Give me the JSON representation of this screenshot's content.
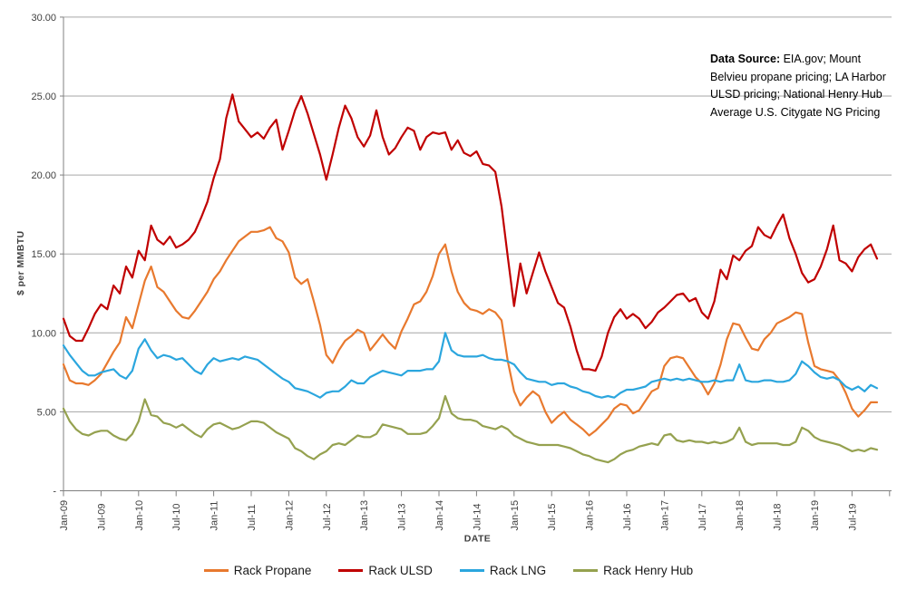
{
  "chart_data": {
    "type": "line",
    "title": "",
    "xlabel": "DATE",
    "ylabel": "$ per MMBTU",
    "ylim": [
      0,
      30
    ],
    "y_tick_step": 5,
    "y_tick_labels": [
      "30.00",
      "25.00",
      "20.00",
      "15.00",
      "10.00",
      "5.00",
      "-"
    ],
    "grid": "horizontal",
    "legend_position": "bottom",
    "x_start_label": "Jan-09",
    "x_end_label": "Nov-19",
    "x_tick_every_months": 6,
    "x_tick_labels": [
      "Jan-09",
      "Jul-09",
      "Jan-10",
      "Jul-10",
      "Jan-11",
      "Jul-11",
      "Jan-12",
      "Jul-12",
      "Jan-13",
      "Jul-13",
      "Jan-14",
      "Jul-14",
      "Jan-15",
      "Jul-15",
      "Jan-16",
      "Jul-16",
      "Jan-17",
      "Jul-17",
      "Jan-18",
      "Jul-18",
      "Jan-19",
      "Jul-19"
    ],
    "series": [
      {
        "name": "Rack Propane",
        "color": "#E8792E",
        "values": [
          8.0,
          7.0,
          6.8,
          6.8,
          6.7,
          7.0,
          7.4,
          8.1,
          8.8,
          9.4,
          11.0,
          10.3,
          11.8,
          13.3,
          14.2,
          12.9,
          12.6,
          12.0,
          11.4,
          11.0,
          10.9,
          11.4,
          12.0,
          12.6,
          13.4,
          13.9,
          14.6,
          15.2,
          15.8,
          16.1,
          16.4,
          16.4,
          16.5,
          16.7,
          16.0,
          15.8,
          15.1,
          13.5,
          13.1,
          13.4,
          12.0,
          10.5,
          8.6,
          8.1,
          8.9,
          9.5,
          9.8,
          10.2,
          10.0,
          8.9,
          9.4,
          9.9,
          9.4,
          9.0,
          10.1,
          10.9,
          11.8,
          12.0,
          12.6,
          13.6,
          15.0,
          15.6,
          13.9,
          12.6,
          11.9,
          11.5,
          11.4,
          11.2,
          11.5,
          11.3,
          10.8,
          8.2,
          6.3,
          5.4,
          5.9,
          6.3,
          6.0,
          5.0,
          4.3,
          4.7,
          5.0,
          4.5,
          4.2,
          3.9,
          3.5,
          3.8,
          4.2,
          4.6,
          5.2,
          5.5,
          5.4,
          4.9,
          5.1,
          5.7,
          6.3,
          6.5,
          7.9,
          8.4,
          8.5,
          8.4,
          7.8,
          7.2,
          6.8,
          6.1,
          6.8,
          8.0,
          9.6,
          10.6,
          10.5,
          9.7,
          9.0,
          8.9,
          9.6,
          10.0,
          10.6,
          10.8,
          11.0,
          11.3,
          11.2,
          9.4,
          7.9,
          7.7,
          7.6,
          7.5,
          7.0,
          6.2,
          5.2,
          4.7,
          5.1,
          5.6,
          5.6
        ]
      },
      {
        "name": "Rack ULSD",
        "color": "#C00000",
        "values": [
          10.9,
          9.8,
          9.5,
          9.5,
          10.3,
          11.2,
          11.8,
          11.5,
          13.0,
          12.5,
          14.2,
          13.5,
          15.2,
          14.6,
          16.8,
          15.9,
          15.6,
          16.1,
          15.4,
          15.6,
          15.9,
          16.4,
          17.3,
          18.3,
          19.8,
          21.0,
          23.6,
          25.1,
          23.4,
          22.9,
          22.4,
          22.7,
          22.3,
          23.0,
          23.5,
          21.6,
          22.8,
          24.1,
          25.0,
          23.9,
          22.6,
          21.3,
          19.7,
          21.3,
          23.0,
          24.4,
          23.6,
          22.4,
          21.8,
          22.5,
          24.1,
          22.4,
          21.3,
          21.7,
          22.4,
          23.0,
          22.8,
          21.6,
          22.4,
          22.7,
          22.6,
          22.7,
          21.6,
          22.2,
          21.4,
          21.2,
          21.5,
          20.7,
          20.6,
          20.2,
          18.0,
          14.8,
          11.7,
          14.4,
          12.5,
          13.8,
          15.1,
          13.9,
          12.9,
          11.9,
          11.6,
          10.4,
          8.9,
          7.7,
          7.7,
          7.6,
          8.5,
          10.0,
          11.0,
          11.5,
          10.9,
          11.2,
          10.9,
          10.3,
          10.7,
          11.3,
          11.6,
          12.0,
          12.4,
          12.5,
          12.0,
          12.2,
          11.3,
          10.9,
          12.0,
          14.0,
          13.4,
          14.9,
          14.6,
          15.2,
          15.5,
          16.7,
          16.2,
          16.0,
          16.8,
          17.5,
          16.0,
          15.0,
          13.8,
          13.2,
          13.4,
          14.2,
          15.3,
          16.8,
          14.6,
          14.4,
          13.9,
          14.8,
          15.3,
          15.6,
          14.7
        ]
      },
      {
        "name": "Rack LNG",
        "color": "#2BA6DE",
        "values": [
          9.2,
          8.6,
          8.1,
          7.6,
          7.3,
          7.3,
          7.5,
          7.6,
          7.7,
          7.3,
          7.1,
          7.6,
          9.0,
          9.6,
          8.9,
          8.4,
          8.6,
          8.5,
          8.3,
          8.4,
          8.0,
          7.6,
          7.4,
          8.0,
          8.4,
          8.2,
          8.3,
          8.4,
          8.3,
          8.5,
          8.4,
          8.3,
          8.0,
          7.7,
          7.4,
          7.1,
          6.9,
          6.5,
          6.4,
          6.3,
          6.1,
          5.9,
          6.2,
          6.3,
          6.3,
          6.6,
          7.0,
          6.8,
          6.8,
          7.2,
          7.4,
          7.6,
          7.5,
          7.4,
          7.3,
          7.6,
          7.6,
          7.6,
          7.7,
          7.7,
          8.2,
          10.0,
          8.9,
          8.6,
          8.5,
          8.5,
          8.5,
          8.6,
          8.4,
          8.3,
          8.3,
          8.2,
          8.0,
          7.5,
          7.1,
          7.0,
          6.9,
          6.9,
          6.7,
          6.8,
          6.8,
          6.6,
          6.5,
          6.3,
          6.2,
          6.0,
          5.9,
          6.0,
          5.9,
          6.2,
          6.4,
          6.4,
          6.5,
          6.6,
          6.9,
          7.0,
          7.1,
          7.0,
          7.1,
          7.0,
          7.1,
          7.0,
          6.9,
          6.9,
          7.0,
          6.9,
          7.0,
          7.0,
          8.0,
          7.0,
          6.9,
          6.9,
          7.0,
          7.0,
          6.9,
          6.9,
          7.0,
          7.4,
          8.2,
          7.9,
          7.5,
          7.2,
          7.1,
          7.2,
          7.0,
          6.6,
          6.4,
          6.6,
          6.3,
          6.7,
          6.5
        ]
      },
      {
        "name": "Rack Henry Hub",
        "color": "#95A14F",
        "values": [
          5.2,
          4.4,
          3.9,
          3.6,
          3.5,
          3.7,
          3.8,
          3.8,
          3.5,
          3.3,
          3.2,
          3.6,
          4.4,
          5.8,
          4.8,
          4.7,
          4.3,
          4.2,
          4.0,
          4.2,
          3.9,
          3.6,
          3.4,
          3.9,
          4.2,
          4.3,
          4.1,
          3.9,
          4.0,
          4.2,
          4.4,
          4.4,
          4.3,
          4.0,
          3.7,
          3.5,
          3.3,
          2.7,
          2.5,
          2.2,
          2.0,
          2.3,
          2.5,
          2.9,
          3.0,
          2.9,
          3.2,
          3.5,
          3.4,
          3.4,
          3.6,
          4.2,
          4.1,
          4.0,
          3.9,
          3.6,
          3.6,
          3.6,
          3.7,
          4.1,
          4.6,
          6.0,
          4.9,
          4.6,
          4.5,
          4.5,
          4.4,
          4.1,
          4.0,
          3.9,
          4.1,
          3.9,
          3.5,
          3.3,
          3.1,
          3.0,
          2.9,
          2.9,
          2.9,
          2.9,
          2.8,
          2.7,
          2.5,
          2.3,
          2.2,
          2.0,
          1.9,
          1.8,
          2.0,
          2.3,
          2.5,
          2.6,
          2.8,
          2.9,
          3.0,
          2.9,
          3.5,
          3.6,
          3.2,
          3.1,
          3.2,
          3.1,
          3.1,
          3.0,
          3.1,
          3.0,
          3.1,
          3.3,
          4.0,
          3.1,
          2.9,
          3.0,
          3.0,
          3.0,
          3.0,
          2.9,
          2.9,
          3.1,
          4.0,
          3.8,
          3.4,
          3.2,
          3.1,
          3.0,
          2.9,
          2.7,
          2.5,
          2.6,
          2.5,
          2.7,
          2.6
        ]
      }
    ]
  },
  "annotation": {
    "bold_label": "Data Source:",
    "line1_rest": "  EIA.gov; Mount",
    "line2": "Belvieu propane pricing;  LA Harbor",
    "line3": "ULSD pricing; National Henry Hub",
    "line4": "Average U.S. Citygate NG Pricing"
  },
  "colors": {
    "grid": "#A6A6A6",
    "axis": "#808080",
    "tick_text": "#404040"
  }
}
